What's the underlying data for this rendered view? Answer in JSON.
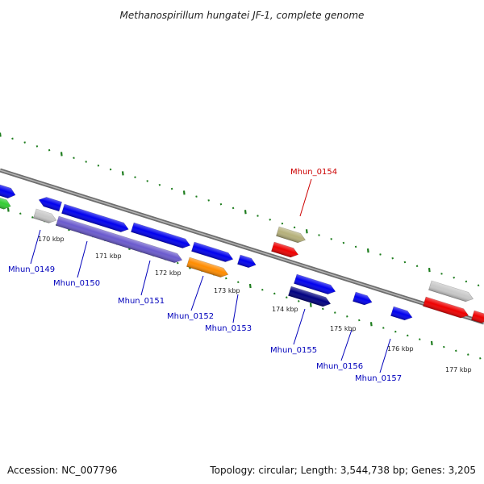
{
  "title": "Methanospirillum hungatei JF-1, complete genome",
  "footer": {
    "accession": "Accession: NC_007796",
    "summary": "Topology: circular; Length: 3,544,738 bp; Genes: 3,205"
  },
  "colors": {
    "backbone": "#888888",
    "tick": "#1e7d1e",
    "label_default": "#0000bb",
    "label_highlight": "#cc0000"
  },
  "ticks": [
    "170 kbp",
    "171 kbp",
    "172 kbp",
    "173 kbp",
    "174 kbp",
    "175 kbp",
    "176 kbp",
    "177 kbp"
  ],
  "gene_labels": [
    {
      "text": "Mhun_0149",
      "highlight": false
    },
    {
      "text": "Mhun_0150",
      "highlight": false
    },
    {
      "text": "Mhun_0151",
      "highlight": false
    },
    {
      "text": "Mhun_0152",
      "highlight": false
    },
    {
      "text": "Mhun_0153",
      "highlight": false
    },
    {
      "text": "Mhun_0154",
      "highlight": true
    },
    {
      "text": "Mhun_0155",
      "highlight": false
    },
    {
      "text": "Mhun_0156",
      "highlight": false
    },
    {
      "text": "Mhun_0157",
      "highlight": false
    }
  ],
  "features": [
    {
      "color": "#0000ee",
      "strand": "+"
    },
    {
      "color": "#33cc33",
      "strand": "+"
    },
    {
      "color": "#0000ee",
      "strand": "-"
    },
    {
      "color": "#0000ee",
      "strand": "+"
    },
    {
      "color": "#0000ee",
      "strand": "+"
    },
    {
      "color": "#0000ee",
      "strand": "+"
    },
    {
      "color": "#c8c8c8",
      "strand": "+"
    },
    {
      "color": "#6a5acd",
      "strand": "+"
    },
    {
      "color": "#ff8c00",
      "strand": "+"
    },
    {
      "color": "#0000ee",
      "strand": "+"
    },
    {
      "color": "#b5b07a",
      "strand": "+"
    },
    {
      "color": "#ee0000",
      "strand": "+"
    },
    {
      "color": "#0000ee",
      "strand": "+"
    },
    {
      "color": "#000080",
      "strand": "+"
    },
    {
      "color": "#0000ee",
      "strand": "+"
    },
    {
      "color": "#0000ee",
      "strand": "+"
    },
    {
      "color": "#c8c8c8",
      "strand": "+"
    },
    {
      "color": "#ee0000",
      "strand": "+"
    },
    {
      "color": "#ee0000",
      "strand": "+"
    }
  ]
}
